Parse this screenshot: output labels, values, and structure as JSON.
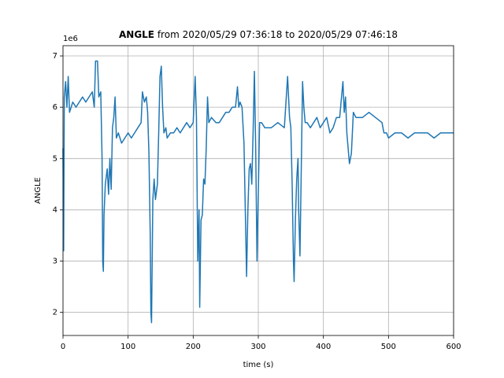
{
  "chart_data": {
    "type": "line",
    "title_bold": "ANGLE",
    "title_rest": " from 2020/05/29 07:36:18 to 2020/05/29 07:46:18",
    "xlabel": "time (s)",
    "ylabel": "ANGLE",
    "offset_text": "1e6",
    "color": "#1f77b4",
    "grid": true,
    "xlim": [
      0,
      600
    ],
    "xticks": [
      0,
      100,
      200,
      300,
      400,
      500,
      600
    ],
    "ylim": [
      1.55,
      7.2
    ],
    "yticks": [
      2,
      3,
      4,
      5,
      6,
      7
    ],
    "x": [
      0,
      1,
      2,
      4,
      6,
      8,
      10,
      15,
      20,
      25,
      30,
      35,
      40,
      45,
      48,
      50,
      53,
      55,
      58,
      60,
      61,
      62,
      63,
      65,
      68,
      70,
      72,
      74,
      76,
      78,
      80,
      82,
      85,
      90,
      95,
      100,
      105,
      110,
      115,
      120,
      122,
      125,
      128,
      130,
      132,
      134,
      135,
      136,
      137,
      138,
      140,
      142,
      145,
      147,
      149,
      151,
      153,
      155,
      158,
      160,
      165,
      170,
      175,
      180,
      185,
      190,
      195,
      200,
      203,
      205,
      207,
      208,
      209,
      210,
      212,
      214,
      216,
      218,
      220,
      222,
      224,
      228,
      235,
      240,
      245,
      250,
      255,
      260,
      265,
      268,
      270,
      272,
      275,
      278,
      280,
      282,
      284,
      286,
      288,
      290,
      292,
      294,
      296,
      298,
      300,
      302,
      305,
      310,
      320,
      330,
      340,
      345,
      348,
      350,
      352,
      354,
      355,
      357,
      359,
      361,
      362,
      364,
      366,
      368,
      370,
      372,
      375,
      380,
      385,
      390,
      395,
      400,
      405,
      410,
      415,
      420,
      425,
      430,
      432,
      434,
      436,
      438,
      440,
      443,
      446,
      450,
      460,
      470,
      480,
      490,
      493,
      497,
      500,
      510,
      520,
      530,
      540,
      550,
      560,
      570,
      580,
      590,
      600
    ],
    "values": [
      5.2,
      3.2,
      6.2,
      6.5,
      6.0,
      6.6,
      5.9,
      6.1,
      6.0,
      6.1,
      6.2,
      6.1,
      6.2,
      6.3,
      6.0,
      6.9,
      6.9,
      6.2,
      6.3,
      5.0,
      3.0,
      2.8,
      3.9,
      4.5,
      4.8,
      4.3,
      5.0,
      4.4,
      5.6,
      5.8,
      6.2,
      5.4,
      5.5,
      5.3,
      5.4,
      5.5,
      5.4,
      5.5,
      5.6,
      5.7,
      6.3,
      6.1,
      6.2,
      5.9,
      5.1,
      3.5,
      2.0,
      1.8,
      3.0,
      4.2,
      4.6,
      4.2,
      4.5,
      5.5,
      6.6,
      6.8,
      6.0,
      5.5,
      5.6,
      5.4,
      5.5,
      5.5,
      5.6,
      5.5,
      5.6,
      5.7,
      5.6,
      5.7,
      6.6,
      5.8,
      3.0,
      3.5,
      4.0,
      2.1,
      3.8,
      3.9,
      4.6,
      4.5,
      5.2,
      6.2,
      5.7,
      5.8,
      5.7,
      5.7,
      5.8,
      5.9,
      5.9,
      6.0,
      6.0,
      6.4,
      6.0,
      6.1,
      6.0,
      5.3,
      4.0,
      2.7,
      4.0,
      4.8,
      4.9,
      4.5,
      5.5,
      6.7,
      5.2,
      3.0,
      4.3,
      5.7,
      5.7,
      5.6,
      5.6,
      5.7,
      5.6,
      6.6,
      5.8,
      5.6,
      4.5,
      3.0,
      2.6,
      3.8,
      4.6,
      5.0,
      4.0,
      3.1,
      4.8,
      6.5,
      6.0,
      5.7,
      5.7,
      5.6,
      5.7,
      5.8,
      5.6,
      5.7,
      5.8,
      5.5,
      5.6,
      5.8,
      5.8,
      6.5,
      5.9,
      6.2,
      5.5,
      5.2,
      4.9,
      5.1,
      5.9,
      5.8,
      5.8,
      5.9,
      5.8,
      5.7,
      5.5,
      5.5,
      5.4,
      5.5,
      5.5,
      5.4,
      5.5,
      5.5,
      5.5,
      5.4,
      5.5,
      5.5,
      5.5
    ]
  }
}
